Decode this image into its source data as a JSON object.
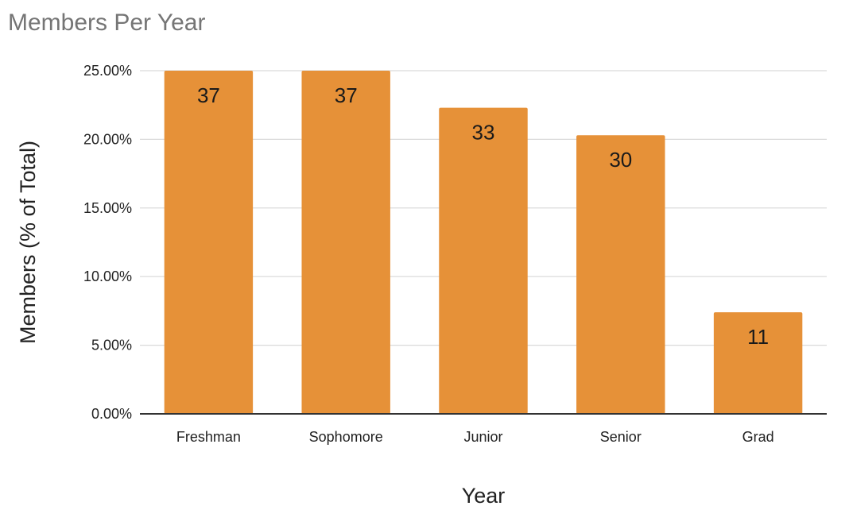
{
  "chart_data": {
    "type": "bar",
    "title": "Members Per Year",
    "xlabel": "Year",
    "ylabel": "Members (% of Total)",
    "categories": [
      "Freshman",
      "Sophomore",
      "Junior",
      "Senior",
      "Grad"
    ],
    "values": [
      25.0,
      25.0,
      22.3,
      20.3,
      7.4
    ],
    "data_labels": [
      "37",
      "37",
      "33",
      "30",
      "11"
    ],
    "ylim": [
      0,
      25
    ],
    "yticks": [
      0,
      5,
      10,
      15,
      20,
      25
    ],
    "ytick_labels": [
      "0.00%",
      "5.00%",
      "10.00%",
      "15.00%",
      "20.00%",
      "25.00%"
    ],
    "grid": true,
    "legend": "none",
    "bar_color": "#E69138"
  }
}
